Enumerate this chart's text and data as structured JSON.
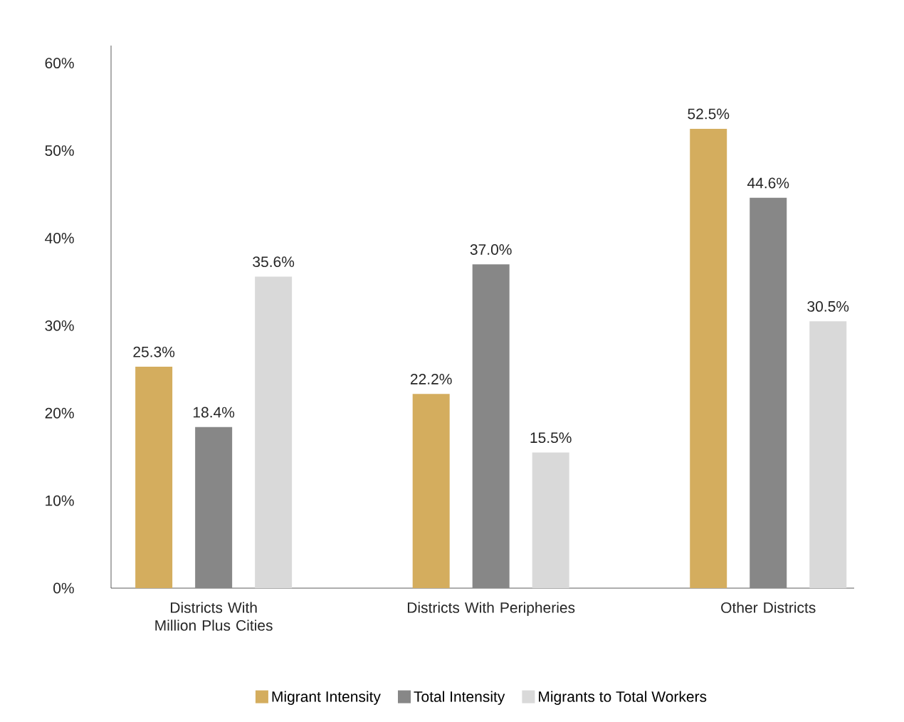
{
  "chart_data": {
    "type": "bar",
    "categories": [
      "Districts With Million Plus Cities",
      "Districts With Peripheries",
      "Other Districts"
    ],
    "series": [
      {
        "name": "Migrant Intensity",
        "color": "#d4ad5e",
        "values": [
          25.3,
          22.2,
          52.5
        ],
        "value_labels": [
          "25.3%",
          "22.2%",
          "52.5%"
        ]
      },
      {
        "name": "Total Intensity",
        "color": "#878787",
        "values": [
          18.4,
          37.0,
          44.6
        ],
        "value_labels": [
          "18.4%",
          "37.0%",
          "44.6%"
        ]
      },
      {
        "name": "Migrants to Total Workers",
        "color": "#d9d9d9",
        "values": [
          35.6,
          15.5,
          30.5
        ],
        "value_labels": [
          "35.6%",
          "15.5%",
          "30.5%"
        ]
      }
    ],
    "ylim": [
      0,
      62
    ],
    "yticks": [
      {
        "value": 0,
        "label": "0%"
      },
      {
        "value": 10,
        "label": "10%"
      },
      {
        "value": 20,
        "label": "20%"
      },
      {
        "value": 30,
        "label": "30%"
      },
      {
        "value": 40,
        "label": "40%"
      },
      {
        "value": 50,
        "label": "50%"
      },
      {
        "value": 60,
        "label": "60%"
      }
    ],
    "legend": "bottom"
  }
}
